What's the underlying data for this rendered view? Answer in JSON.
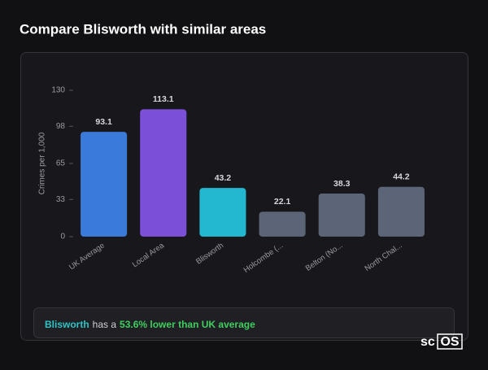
{
  "chart_data": {
    "type": "bar",
    "title": "Compare Blisworth with similar areas",
    "y_label": "Crimes per 1,000",
    "categories": [
      "UK Average",
      "Local Area",
      "Blisworth",
      "Holcombe (...",
      "Belton (No...",
      "North Chal..."
    ],
    "values": [
      93.1,
      113.1,
      43.2,
      22.1,
      38.3,
      44.2
    ],
    "colors": [
      "#3a7ad9",
      "#7c4fd8",
      "#22b9d0",
      "#5b6577",
      "#5b6577",
      "#5b6577"
    ],
    "ylim": [
      0,
      130
    ],
    "yticks": [
      0,
      33,
      65,
      98,
      130
    ],
    "grid": false
  },
  "summary": {
    "area": "Blisworth",
    "text": "has a",
    "highlight": "53.6% lower than UK average"
  },
  "logo": {
    "left": "sc",
    "right": "OS"
  }
}
